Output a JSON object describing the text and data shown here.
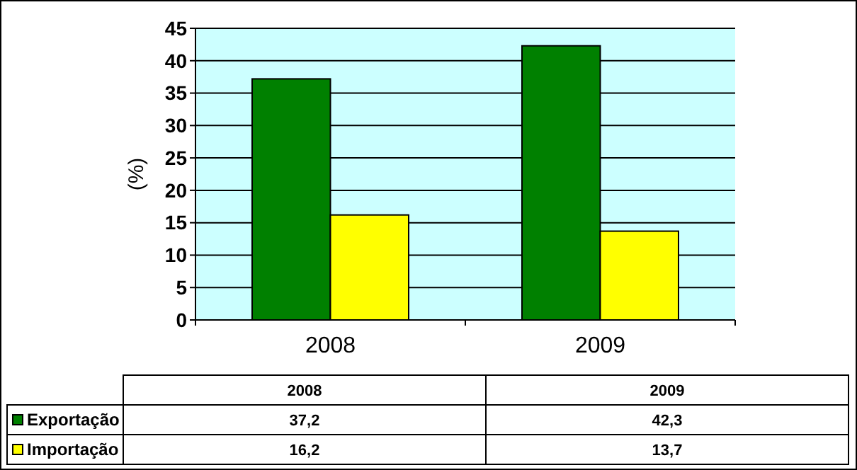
{
  "chart_data": {
    "type": "bar",
    "ylabel": "(%)",
    "categories": [
      "2008",
      "2009"
    ],
    "series": [
      {
        "name": "Exportação",
        "color": "#008000",
        "values": [
          37.2,
          42.3
        ],
        "value_labels": [
          "37,2",
          "42,3"
        ]
      },
      {
        "name": "Importação",
        "color": "#ffff00",
        "values": [
          16.2,
          13.7
        ],
        "value_labels": [
          "16,2",
          "13,7"
        ]
      }
    ],
    "ylim": [
      0,
      45
    ],
    "yticks": [
      0,
      5,
      10,
      15,
      20,
      25,
      30,
      35,
      40,
      45
    ],
    "grid": "y",
    "legend": "bottom left"
  }
}
